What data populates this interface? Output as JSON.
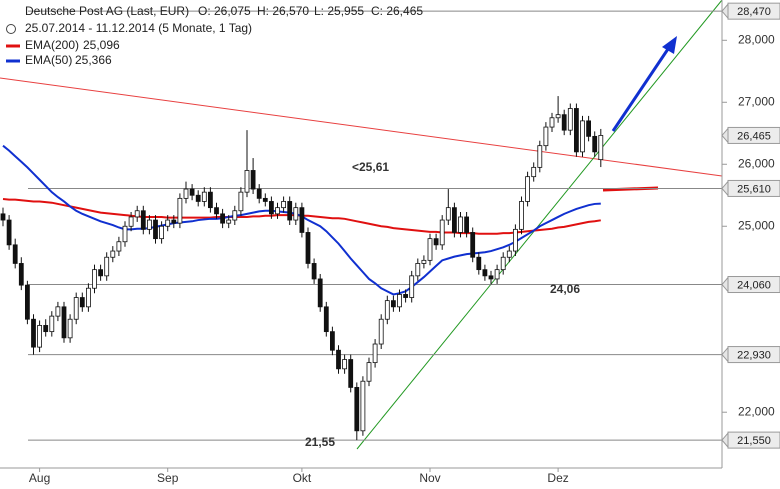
{
  "chart_data": {
    "type": "candlestick",
    "title": "Deutsche Post AG (Last, EUR)",
    "header_values": [
      "O: 26,075",
      "H: 26,570",
      "L: 25,955",
      "C: 26,465"
    ],
    "subtitle": "25.07.2014 - 11.12.2014 (5 Monate, 1 Tag)",
    "categories": [
      null,
      null,
      null,
      null,
      null,
      null,
      "Aug",
      null,
      null,
      null,
      null,
      null,
      null,
      null,
      null,
      null,
      null,
      null,
      null,
      null,
      null,
      null,
      null,
      null,
      null,
      null,
      null,
      "Sep",
      null,
      null,
      null,
      null,
      null,
      null,
      null,
      null,
      null,
      null,
      null,
      null,
      null,
      null,
      null,
      null,
      null,
      null,
      null,
      null,
      null,
      "Okt",
      null,
      null,
      null,
      null,
      null,
      null,
      null,
      null,
      null,
      null,
      null,
      null,
      null,
      null,
      null,
      null,
      null,
      null,
      null,
      null,
      "Nov",
      null,
      null,
      null,
      null,
      null,
      null,
      null,
      null,
      null,
      null,
      null,
      null,
      null,
      null,
      null,
      null,
      null,
      null,
      null,
      null,
      "Dez",
      null,
      null,
      null,
      null,
      null,
      null,
      null
    ],
    "ohlc": [
      [
        25.2,
        25.3,
        25.0,
        25.1
      ],
      [
        25.1,
        25.18,
        24.62,
        24.7
      ],
      [
        24.7,
        24.8,
        24.32,
        24.4
      ],
      [
        24.4,
        24.5,
        23.97,
        24.05
      ],
      [
        24.05,
        24.12,
        23.42,
        23.5
      ],
      [
        23.5,
        23.58,
        22.93,
        23.05
      ],
      [
        23.05,
        23.48,
        22.97,
        23.4
      ],
      [
        23.4,
        23.5,
        23.22,
        23.3
      ],
      [
        23.3,
        23.63,
        23.22,
        23.55
      ],
      [
        23.55,
        23.78,
        23.47,
        23.7
      ],
      [
        23.7,
        23.78,
        23.12,
        23.2
      ],
      [
        23.2,
        23.58,
        23.12,
        23.5
      ],
      [
        23.5,
        23.93,
        23.42,
        23.85
      ],
      [
        23.85,
        23.93,
        23.62,
        23.7
      ],
      [
        23.7,
        24.08,
        23.62,
        24.0
      ],
      [
        24.0,
        24.38,
        23.92,
        24.3
      ],
      [
        24.3,
        24.38,
        24.12,
        24.2
      ],
      [
        24.2,
        24.58,
        24.12,
        24.5
      ],
      [
        24.5,
        24.68,
        24.42,
        24.6
      ],
      [
        24.6,
        24.83,
        24.52,
        24.75
      ],
      [
        24.75,
        25.08,
        24.67,
        25.0
      ],
      [
        25.0,
        25.23,
        24.92,
        25.15
      ],
      [
        25.15,
        25.33,
        25.07,
        25.25
      ],
      [
        25.25,
        25.33,
        24.87,
        24.95
      ],
      [
        24.95,
        25.18,
        24.87,
        25.1
      ],
      [
        25.1,
        25.18,
        24.72,
        24.8
      ],
      [
        24.8,
        25.08,
        24.72,
        25.0
      ],
      [
        25.0,
        25.18,
        24.92,
        25.1
      ],
      [
        25.1,
        25.18,
        24.97,
        25.05
      ],
      [
        25.05,
        25.53,
        24.97,
        25.45
      ],
      [
        25.45,
        25.72,
        25.37,
        25.6
      ],
      [
        25.6,
        25.68,
        25.42,
        25.5
      ],
      [
        25.5,
        25.58,
        25.32,
        25.4
      ],
      [
        25.4,
        25.63,
        25.32,
        25.55
      ],
      [
        25.55,
        25.63,
        25.22,
        25.3
      ],
      [
        25.3,
        25.38,
        25.12,
        25.2
      ],
      [
        25.2,
        25.28,
        24.97,
        25.05
      ],
      [
        25.05,
        25.18,
        24.97,
        25.1
      ],
      [
        25.1,
        25.33,
        25.02,
        25.25
      ],
      [
        25.25,
        25.63,
        25.17,
        25.55
      ],
      [
        25.55,
        26.55,
        25.47,
        25.9
      ],
      [
        25.9,
        26.1,
        25.52,
        25.6
      ],
      [
        25.6,
        25.68,
        25.37,
        25.45
      ],
      [
        25.45,
        25.53,
        25.32,
        25.4
      ],
      [
        25.4,
        25.48,
        25.12,
        25.2
      ],
      [
        25.2,
        25.38,
        25.12,
        25.3
      ],
      [
        25.3,
        25.48,
        25.22,
        25.4
      ],
      [
        25.4,
        25.48,
        25.02,
        25.1
      ],
      [
        25.1,
        25.38,
        25.02,
        25.3
      ],
      [
        25.3,
        25.38,
        24.82,
        24.9
      ],
      [
        24.9,
        24.98,
        24.32,
        24.4
      ],
      [
        24.4,
        24.48,
        24.07,
        24.15
      ],
      [
        24.15,
        24.23,
        23.62,
        23.7
      ],
      [
        23.7,
        23.78,
        23.22,
        23.3
      ],
      [
        23.3,
        23.38,
        22.92,
        23.0
      ],
      [
        23.0,
        23.08,
        22.62,
        22.7
      ],
      [
        22.7,
        22.93,
        22.62,
        22.85
      ],
      [
        22.85,
        22.93,
        22.32,
        22.4
      ],
      [
        22.4,
        22.48,
        21.55,
        21.7
      ],
      [
        21.7,
        22.58,
        21.62,
        22.5
      ],
      [
        22.5,
        22.88,
        22.42,
        22.8
      ],
      [
        22.8,
        23.18,
        22.72,
        23.1
      ],
      [
        23.1,
        23.58,
        23.02,
        23.5
      ],
      [
        23.5,
        23.88,
        23.42,
        23.8
      ],
      [
        23.8,
        23.88,
        23.62,
        23.7
      ],
      [
        23.7,
        23.98,
        23.62,
        23.9
      ],
      [
        23.9,
        23.98,
        23.77,
        23.85
      ],
      [
        23.85,
        24.28,
        23.77,
        24.2
      ],
      [
        24.2,
        24.48,
        24.12,
        24.4
      ],
      [
        24.4,
        24.53,
        24.32,
        24.45
      ],
      [
        24.45,
        24.88,
        24.37,
        24.8
      ],
      [
        24.8,
        24.88,
        24.62,
        24.7
      ],
      [
        24.7,
        25.18,
        24.62,
        25.1
      ],
      [
        25.1,
        25.6,
        25.02,
        25.3
      ],
      [
        25.3,
        25.38,
        24.82,
        24.9
      ],
      [
        24.9,
        25.23,
        24.82,
        25.15
      ],
      [
        25.15,
        25.23,
        24.82,
        24.9
      ],
      [
        24.9,
        24.98,
        24.42,
        24.5
      ],
      [
        24.5,
        24.58,
        24.22,
        24.3
      ],
      [
        24.3,
        24.38,
        24.12,
        24.2
      ],
      [
        24.2,
        24.28,
        24.06,
        24.15
      ],
      [
        24.15,
        24.38,
        24.07,
        24.3
      ],
      [
        24.3,
        24.58,
        24.22,
        24.5
      ],
      [
        24.5,
        24.68,
        24.42,
        24.6
      ],
      [
        24.6,
        25.03,
        24.52,
        24.95
      ],
      [
        24.95,
        25.48,
        24.87,
        25.4
      ],
      [
        25.4,
        25.88,
        25.32,
        25.8
      ],
      [
        25.8,
        26.03,
        25.72,
        25.95
      ],
      [
        25.95,
        26.38,
        25.87,
        26.3
      ],
      [
        26.3,
        26.68,
        26.22,
        26.6
      ],
      [
        26.6,
        26.83,
        26.52,
        26.75
      ],
      [
        26.75,
        27.1,
        26.67,
        26.8
      ],
      [
        26.8,
        26.88,
        26.47,
        26.55
      ],
      [
        26.55,
        26.98,
        26.47,
        26.9
      ],
      [
        26.9,
        26.98,
        26.12,
        26.2
      ],
      [
        26.2,
        26.78,
        26.12,
        26.7
      ],
      [
        26.7,
        26.78,
        26.37,
        26.45
      ],
      [
        26.45,
        26.53,
        26.12,
        26.2
      ],
      [
        26.075,
        26.57,
        25.955,
        26.465
      ]
    ],
    "series": [
      {
        "name": "EMA(200)",
        "value_label": "25,096",
        "color": "#e01010",
        "values": [
          25.44,
          25.43,
          25.43,
          25.42,
          25.41,
          25.4,
          25.4,
          25.39,
          25.38,
          25.36,
          25.34,
          25.32,
          25.3,
          25.28,
          25.26,
          25.24,
          25.22,
          25.21,
          25.2,
          25.19,
          25.18,
          25.17,
          25.16,
          25.15,
          25.15,
          25.15,
          25.15,
          25.14,
          25.14,
          25.14,
          25.14,
          25.14,
          25.14,
          25.14,
          25.14,
          25.15,
          25.15,
          25.15,
          25.15,
          25.15,
          25.15,
          25.16,
          25.16,
          25.17,
          25.17,
          25.18,
          25.18,
          25.18,
          25.18,
          25.17,
          25.17,
          25.16,
          25.15,
          25.14,
          25.13,
          25.13,
          25.12,
          25.1,
          25.08,
          25.06,
          25.04,
          25.02,
          25.0,
          24.99,
          24.97,
          24.96,
          24.95,
          24.94,
          24.93,
          24.92,
          24.91,
          24.91,
          24.9,
          24.9,
          24.9,
          24.89,
          24.89,
          24.89,
          24.88,
          24.88,
          24.88,
          24.88,
          24.89,
          24.89,
          24.9,
          24.91,
          24.92,
          24.93,
          24.94,
          24.95,
          24.96,
          24.98,
          24.99,
          25.01,
          25.03,
          25.05,
          25.07,
          25.08,
          25.096
        ]
      },
      {
        "name": "EMA(50)",
        "value_label": "25,366",
        "color": "#1030d0",
        "values": [
          26.3,
          26.22,
          26.13,
          26.04,
          25.95,
          25.85,
          25.75,
          25.65,
          25.55,
          25.47,
          25.4,
          25.32,
          25.25,
          25.2,
          25.16,
          25.12,
          25.08,
          25.05,
          25.02,
          24.98,
          24.95,
          24.95,
          24.96,
          24.96,
          24.97,
          24.99,
          25.01,
          25.03,
          25.05,
          25.06,
          25.07,
          25.08,
          25.1,
          25.11,
          25.12,
          25.12,
          25.13,
          25.15,
          25.17,
          25.18,
          25.2,
          25.22,
          25.24,
          25.25,
          25.25,
          25.24,
          25.23,
          25.22,
          25.2,
          25.16,
          25.1,
          25.05,
          25.0,
          24.92,
          24.82,
          24.72,
          24.6,
          24.48,
          24.37,
          24.26,
          24.15,
          24.08,
          24.0,
          23.95,
          23.9,
          23.92,
          23.95,
          24.02,
          24.1,
          24.18,
          24.27,
          24.36,
          24.45,
          24.48,
          24.51,
          24.53,
          24.55,
          24.56,
          24.57,
          24.58,
          24.6,
          24.63,
          24.66,
          24.7,
          24.75,
          24.81,
          24.87,
          24.93,
          25.0,
          25.05,
          25.1,
          25.15,
          25.2,
          25.24,
          25.28,
          25.31,
          25.34,
          25.36,
          25.366
        ]
      }
    ],
    "ylim": [
      21.1,
      28.65
    ],
    "yticks": [
      {
        "value": 22,
        "label": "22,000"
      },
      {
        "value": 25,
        "label": "25,000"
      },
      {
        "value": 26,
        "label": "26,000"
      },
      {
        "value": 27,
        "label": "27,000"
      },
      {
        "value": 28,
        "label": "28,000"
      }
    ],
    "price_levels": [
      {
        "value": 28.47,
        "label": "28,470",
        "line": true
      },
      {
        "value": 26.465,
        "label": "26,465",
        "line": false
      },
      {
        "value": 25.61,
        "label": "25,610",
        "line": true
      },
      {
        "value": 24.06,
        "label": "24,060",
        "line": true
      },
      {
        "value": 22.93,
        "label": "22,930",
        "line": true
      },
      {
        "value": 21.55,
        "label": "21,550",
        "line": true
      }
    ],
    "annotations": [
      {
        "text": "<25,61",
        "color": "#e01010"
      },
      {
        "text": "24,06",
        "color": "#777777"
      },
      {
        "text": "21,55",
        "color": "#777777"
      }
    ]
  }
}
